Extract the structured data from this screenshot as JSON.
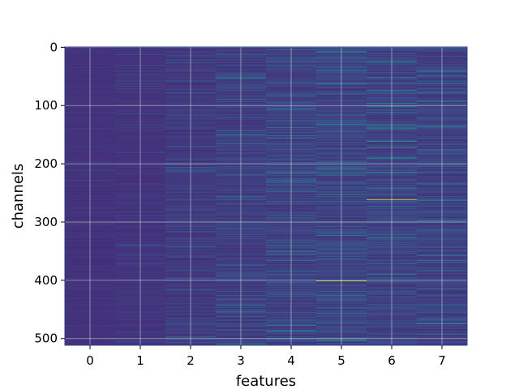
{
  "chart_data": {
    "type": "heatmap",
    "title": "",
    "xlabel": "features",
    "ylabel": "channels",
    "x_categories": [
      "0",
      "1",
      "2",
      "3",
      "4",
      "5",
      "6",
      "7"
    ],
    "xticks": [
      "0",
      "1",
      "2",
      "3",
      "4",
      "5",
      "6",
      "7"
    ],
    "yticks": [
      "0",
      "100",
      "200",
      "300",
      "400",
      "500"
    ],
    "ylim": [
      512,
      0
    ],
    "grid": true,
    "colormap": "viridis",
    "n_rows": 512,
    "background_color": "#3b528b",
    "column_intensity": [
      0.08,
      0.12,
      0.22,
      0.3,
      0.33,
      0.4,
      0.38,
      0.36
    ],
    "highlights": [
      {
        "column": 6,
        "channel": 262,
        "value": 1.0
      },
      {
        "column": 5,
        "channel": 401,
        "value": 0.9
      },
      {
        "column": 6,
        "channel": 215,
        "value": 0.62
      },
      {
        "column": 5,
        "channel": 62,
        "value": 0.55
      },
      {
        "column": 7,
        "channel": 415,
        "value": 0.55
      },
      {
        "column": 7,
        "channel": 475,
        "value": 0.6
      }
    ]
  }
}
